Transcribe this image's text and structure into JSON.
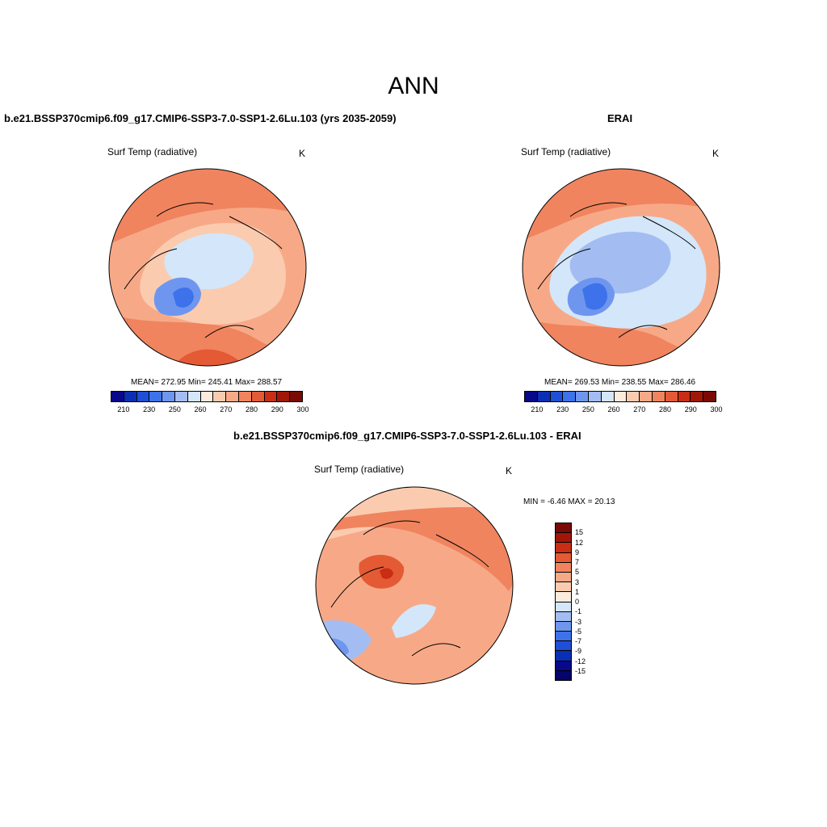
{
  "figure": {
    "title": "ANN"
  },
  "panels": {
    "test": {
      "case_title": "b.e21.BSSP370cmip6.f09_g17.CMIP6-SSP3-7.0-SSP1-2.6Lu.103 (yrs 2035-2059)",
      "variable": "Surf Temp (radiative)",
      "units": "K",
      "stats": "MEAN= 272.95  Min= 245.41  Max= 288.57",
      "mean": 272.95,
      "min": 245.41,
      "max": 288.57
    },
    "reference": {
      "case_title": "ERAI",
      "variable": "Surf Temp (radiative)",
      "units": "K",
      "stats": "MEAN= 269.53  Min= 238.55  Max= 286.46",
      "mean": 269.53,
      "min": 238.55,
      "max": 286.46
    },
    "difference": {
      "case_title": "b.e21.BSSP370cmip6.f09_g17.CMIP6-SSP3-7.0-SSP1-2.6Lu.103 - ERAI",
      "variable": "Surf Temp (radiative)",
      "units": "K",
      "stats": "MIN =  -6.46 MAX =  20.13",
      "min": -6.46,
      "max": 20.13
    }
  },
  "colorbar_main": {
    "tick_labels": [
      "210",
      "230",
      "250",
      "260",
      "270",
      "280",
      "290",
      "300"
    ],
    "colors": [
      "#08088a",
      "#0a2fb5",
      "#1f4fd6",
      "#3d72ea",
      "#6f96ef",
      "#a3bdf2",
      "#d4e6f9",
      "#fdebdc",
      "#fbcbb0",
      "#f7a987",
      "#f0845f",
      "#e45a35",
      "#c92d14",
      "#a0170a",
      "#7a0a05"
    ]
  },
  "colorbar_diff": {
    "tick_labels": [
      "15",
      "12",
      "9",
      "7",
      "5",
      "3",
      "1",
      "0",
      "-1",
      "-3",
      "-5",
      "-7",
      "-9",
      "-12",
      "-15"
    ],
    "colors": [
      "#7a0a05",
      "#a0170a",
      "#c92d14",
      "#e45a35",
      "#f0845f",
      "#f7a987",
      "#fbcbb0",
      "#fdebdc",
      "#d4e6f9",
      "#a3bdf2",
      "#6f96ef",
      "#3d72ea",
      "#1f4fd6",
      "#0a2fb5",
      "#08088a",
      "#050569"
    ]
  }
}
